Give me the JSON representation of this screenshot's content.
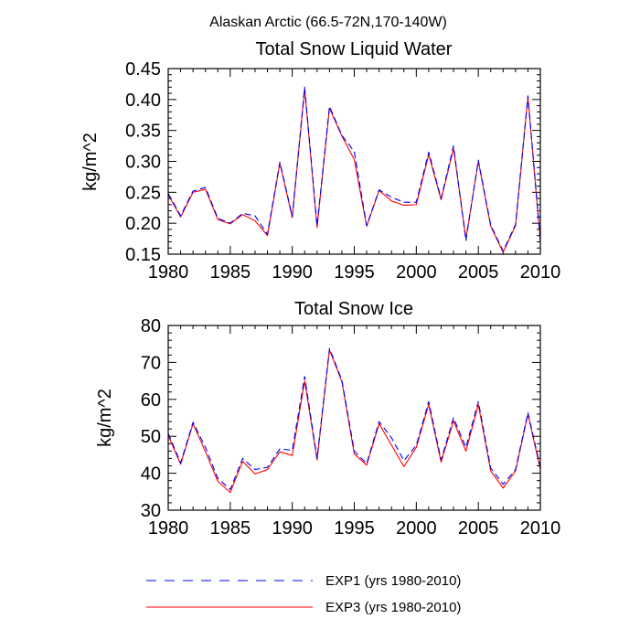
{
  "suptitle": "Alaskan Arctic (66.5-72N,170-140W)",
  "legend": [
    {
      "label": "EXP1 (yrs 1980-2010)",
      "color": "#0000ff",
      "style": "dashed"
    },
    {
      "label": "EXP3 (yrs 1980-2010)",
      "color": "#ff0000",
      "style": "solid"
    }
  ],
  "chart_data": [
    {
      "type": "line",
      "title": "Total Snow Liquid Water",
      "xlabel": "",
      "ylabel": "kg/m^2",
      "xlim": [
        1980,
        2010
      ],
      "ylim": [
        0.15,
        0.45
      ],
      "xticks": [
        1980,
        1985,
        1990,
        1995,
        2000,
        2005,
        2010
      ],
      "xtick_labels": [
        "1980",
        "1985",
        "1990",
        "1995",
        "2000",
        "2005",
        "2010"
      ],
      "yticks": [
        0.15,
        0.2,
        0.25,
        0.3,
        0.35,
        0.4,
        0.45
      ],
      "ytick_labels": [
        "0.15",
        "0.20",
        "0.25",
        "0.30",
        "0.35",
        "0.40",
        "0.45"
      ],
      "x": [
        1980,
        1981,
        1982,
        1983,
        1984,
        1985,
        1986,
        1987,
        1988,
        1989,
        1990,
        1991,
        1992,
        1993,
        1994,
        1995,
        1996,
        1997,
        1998,
        1999,
        2000,
        2001,
        2002,
        2003,
        2004,
        2005,
        2006,
        2007,
        2008,
        2009,
        2010
      ],
      "series": [
        {
          "name": "EXP1 (yrs 1980-2010)",
          "color": "#0000ff",
          "values": [
            0.248,
            0.212,
            0.252,
            0.258,
            0.208,
            0.2,
            0.216,
            0.212,
            0.182,
            0.299,
            0.211,
            0.42,
            0.196,
            0.389,
            0.342,
            0.316,
            0.196,
            0.254,
            0.242,
            0.234,
            0.234,
            0.315,
            0.24,
            0.325,
            0.172,
            0.302,
            0.197,
            0.155,
            0.198,
            0.406,
            0.172
          ]
        },
        {
          "name": "EXP3 (yrs 1980-2010)",
          "color": "#ff0000",
          "values": [
            0.246,
            0.21,
            0.25,
            0.255,
            0.206,
            0.199,
            0.214,
            0.204,
            0.18,
            0.297,
            0.209,
            0.417,
            0.193,
            0.386,
            0.341,
            0.303,
            0.195,
            0.253,
            0.236,
            0.229,
            0.23,
            0.311,
            0.238,
            0.321,
            0.175,
            0.3,
            0.195,
            0.153,
            0.196,
            0.404,
            0.17
          ]
        }
      ]
    },
    {
      "type": "line",
      "title": "Total Snow Ice",
      "xlabel": "",
      "ylabel": "kg/m^2",
      "xlim": [
        1980,
        2010
      ],
      "ylim": [
        30,
        80
      ],
      "xticks": [
        1980,
        1985,
        1990,
        1995,
        2000,
        2005,
        2010
      ],
      "xtick_labels": [
        "1980",
        "1985",
        "1990",
        "1995",
        "2000",
        "2005",
        "2010"
      ],
      "yticks": [
        30,
        40,
        50,
        60,
        70,
        80
      ],
      "ytick_labels": [
        "30",
        "40",
        "50",
        "60",
        "70",
        "80"
      ],
      "x": [
        1980,
        1981,
        1982,
        1983,
        1984,
        1985,
        1986,
        1987,
        1988,
        1989,
        1990,
        1991,
        1992,
        1993,
        1994,
        1995,
        1996,
        1997,
        1998,
        1999,
        2000,
        2001,
        2002,
        2003,
        2004,
        2005,
        2006,
        2007,
        2008,
        2009,
        2010
      ],
      "series": [
        {
          "name": "EXP1 (yrs 1980-2010)",
          "color": "#0000ff",
          "values": [
            50.8,
            42.8,
            53.8,
            47.0,
            38.6,
            35.6,
            44.0,
            41.0,
            41.6,
            46.6,
            46.2,
            66.2,
            44.0,
            73.8,
            65.2,
            46.0,
            42.6,
            54.0,
            49.6,
            43.4,
            47.6,
            59.4,
            43.6,
            55.0,
            47.0,
            59.4,
            41.4,
            37.0,
            41.0,
            56.4,
            41.6
          ]
        },
        {
          "name": "EXP3 (yrs 1980-2010)",
          "color": "#ff0000",
          "values": [
            50.2,
            42.4,
            53.4,
            45.8,
            37.8,
            34.8,
            43.2,
            39.8,
            41.0,
            45.8,
            44.8,
            65.0,
            43.6,
            73.4,
            64.8,
            45.2,
            42.2,
            53.4,
            47.6,
            41.8,
            47.0,
            58.6,
            43.0,
            54.2,
            46.0,
            58.6,
            40.6,
            36.0,
            40.6,
            56.0,
            41.0
          ]
        }
      ]
    }
  ]
}
